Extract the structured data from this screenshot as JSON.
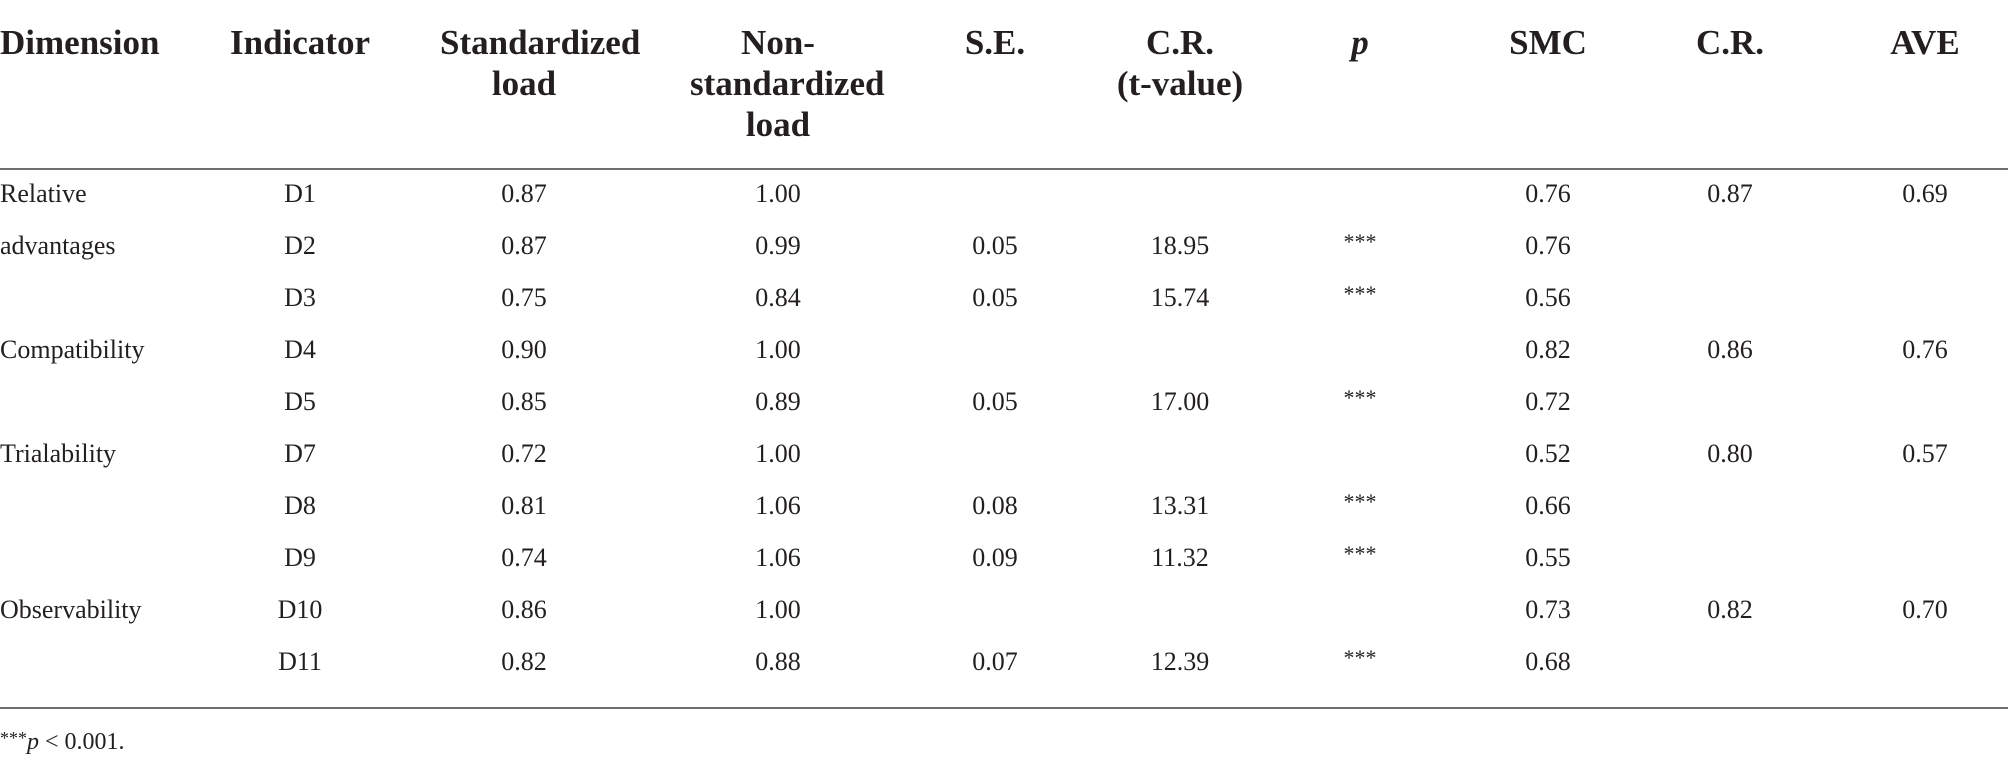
{
  "headers": {
    "dimension": [
      "Dimension"
    ],
    "indicator": [
      "Indicator"
    ],
    "standardized": [
      "Standardized",
      "load"
    ],
    "nonstandardized": [
      "Non-",
      "standardized",
      "load"
    ],
    "se": [
      "S.E."
    ],
    "cr": [
      "C.R.",
      "(t-value)"
    ],
    "p": [
      "p"
    ],
    "smc": [
      "SMC"
    ],
    "cr2": [
      "C.R."
    ],
    "ave": [
      "AVE"
    ]
  },
  "rows": [
    {
      "dimension": "Relative",
      "indicator": "D1",
      "std": "0.87",
      "non": "1.00",
      "se": "",
      "cr": "",
      "p": "",
      "smc": "0.76",
      "cr2": "0.87",
      "ave": "0.69"
    },
    {
      "dimension": "advantages",
      "indicator": "D2",
      "std": "0.87",
      "non": "0.99",
      "se": "0.05",
      "cr": "18.95",
      "p": "***",
      "smc": "0.76",
      "cr2": "",
      "ave": ""
    },
    {
      "dimension": "",
      "indicator": "D3",
      "std": "0.75",
      "non": "0.84",
      "se": "0.05",
      "cr": "15.74",
      "p": "***",
      "smc": "0.56",
      "cr2": "",
      "ave": ""
    },
    {
      "dimension": "Compatibility",
      "indicator": "D4",
      "std": "0.90",
      "non": "1.00",
      "se": "",
      "cr": "",
      "p": "",
      "smc": "0.82",
      "cr2": "0.86",
      "ave": "0.76"
    },
    {
      "dimension": "",
      "indicator": "D5",
      "std": "0.85",
      "non": "0.89",
      "se": "0.05",
      "cr": "17.00",
      "p": "***",
      "smc": "0.72",
      "cr2": "",
      "ave": ""
    },
    {
      "dimension": "Trialability",
      "indicator": "D7",
      "std": "0.72",
      "non": "1.00",
      "se": "",
      "cr": "",
      "p": "",
      "smc": "0.52",
      "cr2": "0.80",
      "ave": "0.57"
    },
    {
      "dimension": "",
      "indicator": "D8",
      "std": "0.81",
      "non": "1.06",
      "se": "0.08",
      "cr": "13.31",
      "p": "***",
      "smc": "0.66",
      "cr2": "",
      "ave": ""
    },
    {
      "dimension": "",
      "indicator": "D9",
      "std": "0.74",
      "non": "1.06",
      "se": "0.09",
      "cr": "11.32",
      "p": "***",
      "smc": "0.55",
      "cr2": "",
      "ave": ""
    },
    {
      "dimension": "Observability",
      "indicator": "D10",
      "std": "0.86",
      "non": "1.00",
      "se": "",
      "cr": "",
      "p": "",
      "smc": "0.73",
      "cr2": "0.82",
      "ave": "0.70"
    },
    {
      "dimension": "",
      "indicator": "D11",
      "std": "0.82",
      "non": "0.88",
      "se": "0.07",
      "cr": "12.39",
      "p": "***",
      "smc": "0.68",
      "cr2": "",
      "ave": ""
    }
  ],
  "footnote": {
    "stars": "***",
    "p": "p",
    "text": " < 0.001."
  }
}
